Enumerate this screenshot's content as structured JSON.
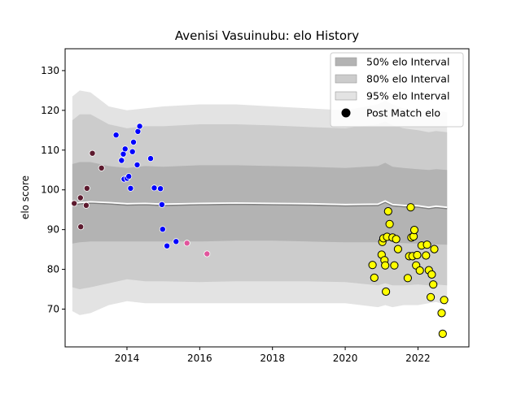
{
  "chart_data": {
    "type": "scatter",
    "title": "Avenisi Vasuinubu: elo History",
    "xlabel": "",
    "ylabel": "elo score",
    "xlim": [
      2012.3,
      2023.4
    ],
    "ylim": [
      60.5,
      135.5
    ],
    "x_ticks": [
      2014,
      2016,
      2018,
      2020,
      2022
    ],
    "y_ticks": [
      70,
      80,
      90,
      100,
      110,
      120,
      130
    ],
    "grid": false,
    "legend_position": "top-right",
    "legend": [
      {
        "label": "50% elo Interval",
        "kind": "band",
        "color": "#b3b3b3"
      },
      {
        "label": "80% elo Interval",
        "kind": "band",
        "color": "#cccccc"
      },
      {
        "label": "95% elo Interval",
        "kind": "band",
        "color": "#e3e3e3"
      },
      {
        "label": "Post Match elo",
        "kind": "marker",
        "color": "#000000"
      }
    ],
    "bands": {
      "x": [
        2012.5,
        2012.7,
        2013.0,
        2013.5,
        2014.0,
        2014.5,
        2015.0,
        2016.0,
        2017.0,
        2018.0,
        2019.0,
        2020.0,
        2020.9,
        2021.1,
        2021.3,
        2021.6,
        2022.0,
        2022.3,
        2022.5,
        2022.8
      ],
      "mean": [
        96.5,
        96.8,
        97.0,
        96.8,
        96.5,
        96.6,
        96.4,
        96.6,
        96.7,
        96.6,
        96.5,
        96.3,
        96.4,
        97.2,
        96.3,
        96.1,
        96.0,
        95.6,
        95.9,
        95.6
      ],
      "p95_upper": [
        123.5,
        125.0,
        124.5,
        121.0,
        120.0,
        120.5,
        121.0,
        121.5,
        121.5,
        121.0,
        120.5,
        120.0,
        121.5,
        122.5,
        121.5,
        120.5,
        120.0,
        119.5,
        120.0,
        119.5
      ],
      "p80_upper": [
        117.5,
        119.0,
        119.0,
        116.5,
        115.5,
        116.0,
        116.0,
        116.5,
        116.5,
        116.2,
        115.8,
        115.5,
        116.5,
        117.2,
        116.2,
        115.5,
        115.0,
        114.5,
        114.8,
        114.5
      ],
      "p50_upper": [
        106.5,
        107.0,
        107.0,
        106.0,
        105.5,
        106.0,
        105.8,
        106.2,
        106.2,
        106.0,
        105.8,
        105.5,
        106.0,
        106.8,
        105.8,
        105.5,
        105.2,
        105.0,
        105.2,
        105.0
      ],
      "p50_lower": [
        86.5,
        86.8,
        87.0,
        87.0,
        87.0,
        87.0,
        87.0,
        87.0,
        87.2,
        87.2,
        87.0,
        86.8,
        86.8,
        87.6,
        86.8,
        86.6,
        86.5,
        86.0,
        86.3,
        86.2
      ],
      "p80_lower": [
        75.5,
        75.0,
        75.5,
        76.5,
        77.5,
        77.0,
        77.0,
        76.8,
        77.0,
        77.0,
        77.0,
        76.8,
        76.0,
        76.5,
        76.0,
        76.0,
        76.2,
        76.0,
        76.2,
        76.0
      ],
      "p95_lower": [
        69.5,
        68.5,
        69.0,
        71.0,
        72.0,
        71.5,
        71.5,
        71.5,
        71.5,
        71.5,
        71.5,
        71.5,
        70.5,
        71.0,
        70.5,
        71.0,
        71.0,
        71.5,
        71.8,
        71.0
      ],
      "mean_line_color": "#ffffff",
      "median_line_color": "#7f7f7f"
    },
    "series": [
      {
        "color": "#5c1a2e",
        "points": [
          [
            2012.55,
            96.6
          ],
          [
            2012.72,
            98.0
          ],
          [
            2012.73,
            90.7
          ],
          [
            2012.88,
            96.1
          ],
          [
            2012.9,
            100.4
          ],
          [
            2013.05,
            109.2
          ],
          [
            2013.3,
            105.5
          ]
        ]
      },
      {
        "color": "#0000ff",
        "points": [
          [
            2013.7,
            113.8
          ],
          [
            2013.85,
            107.4
          ],
          [
            2013.9,
            109.0
          ],
          [
            2013.92,
            102.7
          ],
          [
            2013.95,
            110.3
          ],
          [
            2014.0,
            102.9
          ],
          [
            2014.05,
            103.4
          ],
          [
            2014.1,
            100.4
          ],
          [
            2014.15,
            109.6
          ],
          [
            2014.18,
            112.0
          ],
          [
            2014.28,
            106.3
          ],
          [
            2014.3,
            114.7
          ],
          [
            2014.35,
            116.0
          ],
          [
            2014.65,
            107.9
          ],
          [
            2014.75,
            100.5
          ],
          [
            2014.92,
            100.3
          ],
          [
            2014.96,
            96.3
          ],
          [
            2014.98,
            90.1
          ],
          [
            2015.1,
            85.9
          ],
          [
            2015.35,
            87.0
          ]
        ]
      },
      {
        "color": "#e0559c",
        "points": [
          [
            2015.65,
            86.6
          ],
          [
            2016.2,
            83.9
          ]
        ]
      },
      {
        "color": "#ffff00",
        "points": [
          [
            2020.75,
            81.1
          ],
          [
            2020.8,
            77.9
          ],
          [
            2021.0,
            83.7
          ],
          [
            2021.02,
            86.9
          ],
          [
            2021.05,
            87.8
          ],
          [
            2021.08,
            82.3
          ],
          [
            2021.1,
            81.0
          ],
          [
            2021.12,
            74.4
          ],
          [
            2021.15,
            88.2
          ],
          [
            2021.18,
            94.6
          ],
          [
            2021.22,
            91.4
          ],
          [
            2021.3,
            88.0
          ],
          [
            2021.35,
            81.0
          ],
          [
            2021.4,
            87.6
          ],
          [
            2021.45,
            85.1
          ],
          [
            2021.72,
            77.8
          ],
          [
            2021.76,
            83.3
          ],
          [
            2021.8,
            95.6
          ],
          [
            2021.82,
            88.0
          ],
          [
            2021.85,
            83.3
          ],
          [
            2021.88,
            88.3
          ],
          [
            2021.9,
            89.9
          ],
          [
            2021.95,
            81.0
          ],
          [
            2021.98,
            83.6
          ],
          [
            2022.05,
            79.7
          ],
          [
            2022.1,
            86.0
          ],
          [
            2022.22,
            83.5
          ],
          [
            2022.25,
            86.2
          ],
          [
            2022.3,
            79.8
          ],
          [
            2022.35,
            73.0
          ],
          [
            2022.38,
            78.7
          ],
          [
            2022.42,
            76.2
          ],
          [
            2022.45,
            85.1
          ],
          [
            2022.65,
            69.0
          ],
          [
            2022.68,
            63.8
          ],
          [
            2022.72,
            72.3
          ]
        ]
      }
    ]
  }
}
